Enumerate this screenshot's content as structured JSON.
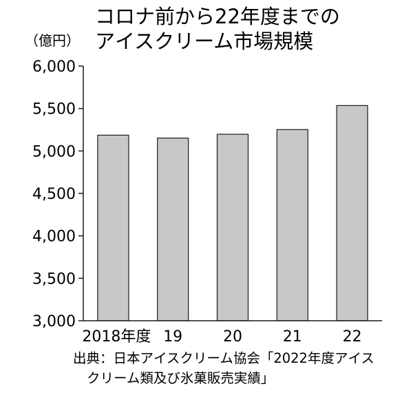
{
  "chart_data": {
    "type": "bar",
    "title_lines": [
      "コロナ前から22年度までの",
      "アイスクリーム市場規模"
    ],
    "unit_label": "（億円）",
    "categories": [
      "2018年度",
      "19",
      "20",
      "21",
      "22"
    ],
    "values": [
      5186,
      5152,
      5197,
      5252,
      5535
    ],
    "ylim": [
      3000,
      6000
    ],
    "yticks": [
      3000,
      3500,
      4000,
      4500,
      5000,
      5500,
      6000
    ],
    "ytick_labels": [
      "3,000",
      "3,500",
      "4,000",
      "4,500",
      "5,000",
      "5,500",
      "6,000"
    ],
    "grid": false,
    "bar_color": "#c8c8c8",
    "bar_edge_color": "#1a1a1a"
  },
  "source_lines": [
    "出典：日本アイスクリーム協会「2022年度アイス",
    "クリーム類及び氷菓販売実績」"
  ]
}
